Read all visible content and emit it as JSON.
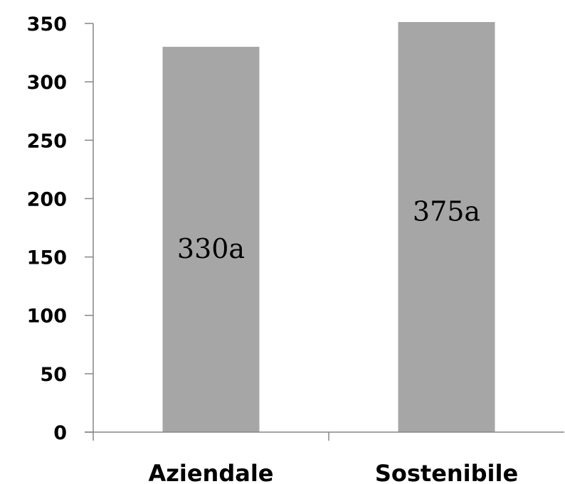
{
  "chart_data": {
    "type": "bar",
    "categories": [
      "Aziendale",
      "Sostenibile"
    ],
    "values": [
      330,
      375
    ],
    "data_labels": [
      "330a",
      "375a"
    ],
    "ylim": [
      0,
      350
    ],
    "yticks": [
      "0",
      "50",
      "100",
      "150",
      "200",
      "250",
      "300",
      "350"
    ],
    "grid": false,
    "bar_color": "#a6a6a6",
    "axis_color": "#868686"
  }
}
